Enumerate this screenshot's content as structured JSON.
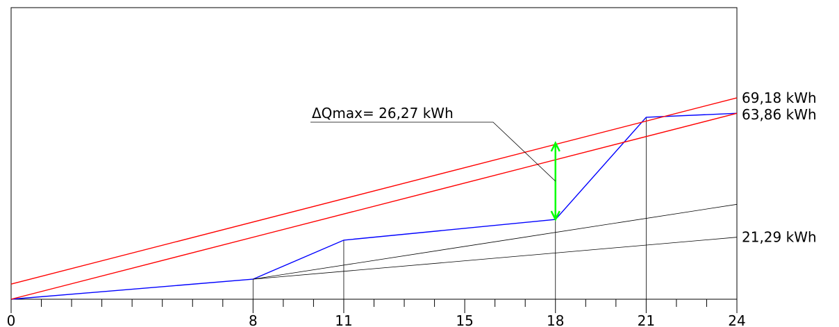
{
  "chart_data": {
    "type": "line",
    "xlim": [
      0,
      24
    ],
    "x_tick_labels": [
      "0",
      "8",
      "11",
      "15",
      "18",
      "21",
      "24"
    ],
    "x_tick_values": [
      0,
      8,
      11,
      15,
      18,
      21,
      24
    ],
    "minor_ticks_every": 1,
    "grid": false,
    "series": [
      {
        "name": "",
        "color": "#0000ff",
        "x": [
          0,
          8,
          11,
          18,
          21,
          24
        ],
        "y": [
          0,
          6.9,
          20.3,
          27.4,
          62.5,
          63.86
        ]
      },
      {
        "name": "",
        "color": "#ff0000",
        "x": [
          0,
          24
        ],
        "y": [
          5.2,
          69.18
        ]
      },
      {
        "name": "",
        "color": "#ff0000",
        "x": [
          0,
          24
        ],
        "y": [
          0,
          63.86
        ]
      },
      {
        "name": "",
        "color": "#000000",
        "x": [
          8,
          24
        ],
        "y": [
          6.9,
          21.29
        ]
      },
      {
        "name": "",
        "color": "#000000",
        "x": [
          8,
          24
        ],
        "y": [
          6.9,
          32.6
        ]
      }
    ],
    "end_labels": [
      {
        "text": "69,18  kWh",
        "y": 69.18
      },
      {
        "text": "63,86  kWh",
        "y": 63.86
      },
      {
        "text": "21,29  kWh",
        "y": 21.29
      }
    ],
    "drop_lines_x": [
      8,
      11,
      18,
      21,
      24
    ],
    "delta_arrow": {
      "x": 18,
      "y_low": 27.4,
      "y_high": 53.67,
      "color": "#00ff00"
    },
    "annotation": {
      "text": "ΔQmax=  26,27  kWh"
    }
  }
}
